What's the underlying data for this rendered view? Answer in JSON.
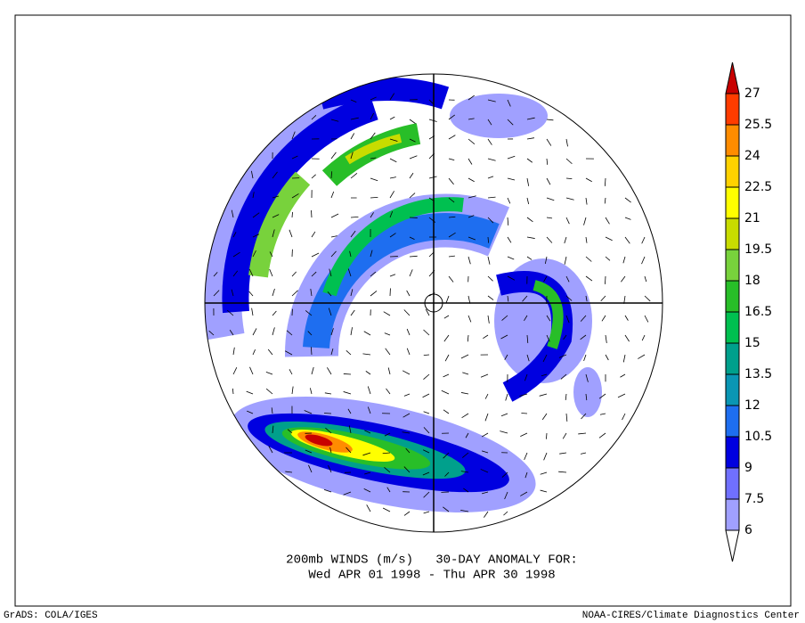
{
  "caption": {
    "line1": "200mb WINDS (m/s)   30-DAY ANOMALY FOR:",
    "line2": "Wed APR 01 1998 - Thu APR 30 1998"
  },
  "footer": {
    "left": "GrADS: COLA/IGES",
    "right": "NOAA-CIRES/Climate Diagnostics Center"
  },
  "legend": {
    "levels": [
      6,
      7.5,
      9,
      10.5,
      12,
      13.5,
      15,
      16.5,
      18,
      19.5,
      21,
      22.5,
      24,
      25.5,
      27
    ],
    "colors": [
      "#ffffff",
      "#a0a0ff",
      "#7070ff",
      "#0000e0",
      "#1e6ef0",
      "#0a96b4",
      "#00a08c",
      "#00c050",
      "#28be28",
      "#78d23c",
      "#c8dc00",
      "#ffff00",
      "#ffd200",
      "#ff8c00",
      "#ff3c00",
      "#c80000"
    ]
  }
}
